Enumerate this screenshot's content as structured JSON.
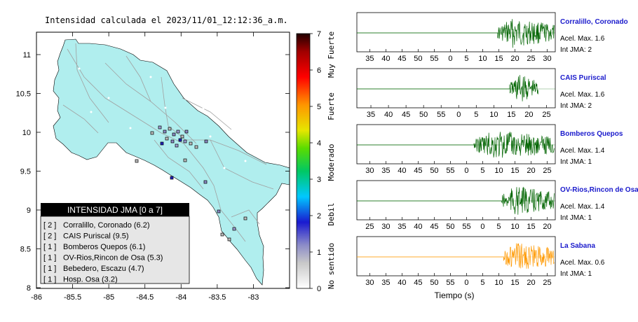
{
  "map": {
    "title": "Intensidad calculada el 2023/11/01_12:12:36_a.m.",
    "x_ticks": [
      "-86",
      "-85.5",
      "-85",
      "-84.5",
      "-84",
      "-83.5",
      "-83"
    ],
    "y_ticks": [
      "11",
      "10.5",
      "10",
      "9.5",
      "9",
      "8.5",
      "8"
    ],
    "land_color": "#b0eeee",
    "legend": {
      "title": "INTENSIDAD JMA [0 a 7]",
      "entries": [
        {
          "code": "[ 2 ]",
          "text": "Corralillo, Coronado (6.2)"
        },
        {
          "code": "[ 2 ]",
          "text": "CAIS Puriscal (9.5)"
        },
        {
          "code": "[ 1 ]",
          "text": "Bomberos Quepos (6.1)"
        },
        {
          "code": "[ 1 ]",
          "text": "OV-Rios,Rincon de Osa (5.3)"
        },
        {
          "code": "[ 1 ]",
          "text": "Bebedero, Escazu (4.7)"
        },
        {
          "code": "[ 1 ]",
          "text": "Hosp. Osa (3.2)"
        }
      ]
    }
  },
  "colorbar": {
    "ticks": [
      "7",
      "6",
      "5",
      "4",
      "3",
      "2",
      "1",
      "0"
    ],
    "labels": [
      "Muy Fuerte",
      "Fuerte",
      "Moderado",
      "Debil",
      "No sentido"
    ]
  },
  "seismograms": {
    "xlabel": "Tiempo (s)",
    "panels": [
      {
        "station": "Corralillo, Coronado",
        "accel": "Acel. Max. 1.6",
        "jma": "Int JMA: 2",
        "ticks": [
          "35",
          "40",
          "45",
          "50",
          "55",
          "0",
          "5",
          "10",
          "15",
          "20",
          "25",
          "30"
        ],
        "color": "#006400",
        "onset": 0.71,
        "end": 1.0
      },
      {
        "station": "CAIS Puriscal",
        "accel": "Acel. Max. 1.6",
        "jma": "Int JMA: 2",
        "ticks": [
          "35",
          "40",
          "45",
          "50",
          "55",
          "0",
          "5",
          "10",
          "15",
          "20",
          "25"
        ],
        "color": "#006400",
        "onset": 0.77,
        "end": 0.92
      },
      {
        "station": "Bomberos Quepos",
        "accel": "Acel. Max. 1.4",
        "jma": "Int JMA: 1",
        "ticks": [
          "30",
          "35",
          "40",
          "45",
          "50",
          "55",
          "0",
          "5",
          "10",
          "15",
          "20",
          "25"
        ],
        "color": "#006400",
        "onset": 0.59,
        "end": 1.0
      },
      {
        "station": "OV-Rios,Rincon de Osa",
        "accel": "Acel. Max. 1.4",
        "jma": "Int JMA: 1",
        "ticks": [
          "25",
          "30",
          "35",
          "40",
          "45",
          "50",
          "55",
          "0",
          "5",
          "10",
          "15",
          "20"
        ],
        "color": "#006400",
        "onset": 0.73,
        "end": 1.0
      },
      {
        "station": "La Sabana",
        "accel": "Acel. Max. 0.6",
        "jma": "Int JMA: 1",
        "ticks": [
          "30",
          "35",
          "40",
          "45",
          "50",
          "55",
          "0",
          "5",
          "10",
          "15",
          "20",
          "25"
        ],
        "color": "#ff9900",
        "onset": 0.74,
        "end": 1.0
      }
    ]
  }
}
